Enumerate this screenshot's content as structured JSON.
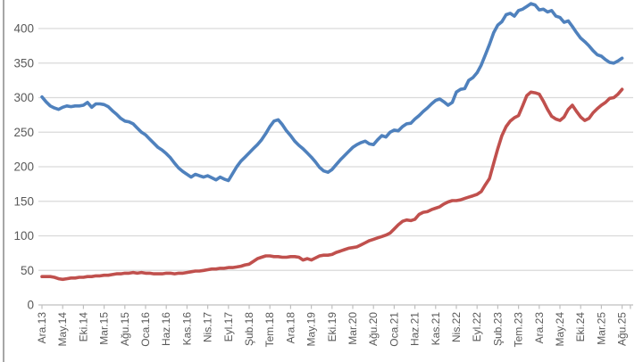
{
  "chart_data": {
    "type": "line",
    "title": "",
    "xlabel": "",
    "ylabel": "",
    "legend": "none",
    "grid": true,
    "x_is_monthly_categories": true,
    "x_first_category": "Ara.13",
    "x_last_category": "Ağu.25",
    "x_label_step_months": 5,
    "x_tick_labels": [
      "Ara.13",
      "May.14",
      "Eki.14",
      "Mar.15",
      "Ağu.15",
      "Oca.16",
      "Haz.16",
      "Kas.16",
      "Nis.17",
      "Eyl.17",
      "Şub.18",
      "Tem.18",
      "Ara.18",
      "May.19",
      "Eki.19",
      "Mar.20",
      "Ağu.20",
      "Oca.21",
      "Haz.21",
      "Kas.21",
      "Nis.22",
      "Eyl.22",
      "Şub.23",
      "Tem.23",
      "Ara.23",
      "May.24",
      "Eki.24",
      "Mar.25",
      "Ağu.25"
    ],
    "y_ticks": [
      0,
      50,
      100,
      150,
      200,
      250,
      300,
      350,
      400
    ],
    "ylim": [
      0,
      440
    ],
    "series": [
      {
        "name": "blue-series",
        "color": "#4F81BD",
        "values": [
          301,
          294,
          288,
          285,
          283,
          286,
          288,
          287,
          288,
          288,
          289,
          293,
          286,
          291,
          291,
          290,
          287,
          281,
          276,
          270,
          266,
          265,
          262,
          256,
          250,
          246,
          240,
          234,
          228,
          224,
          219,
          213,
          205,
          198,
          193,
          189,
          185,
          189,
          187,
          185,
          187,
          184,
          181,
          185,
          182,
          180,
          190,
          200,
          208,
          214,
          220,
          226,
          232,
          239,
          248,
          258,
          266,
          268,
          261,
          252,
          245,
          237,
          231,
          226,
          220,
          214,
          207,
          199,
          194,
          192,
          196,
          203,
          210,
          216,
          222,
          228,
          232,
          235,
          237,
          233,
          232,
          239,
          245,
          243,
          250,
          253,
          252,
          258,
          262,
          263,
          269,
          274,
          280,
          285,
          291,
          296,
          298,
          294,
          289,
          293,
          308,
          312,
          313,
          325,
          329,
          336,
          347,
          362,
          377,
          394,
          405,
          410,
          420,
          422,
          418,
          426,
          428,
          432,
          436,
          434,
          427,
          428,
          424,
          426,
          418,
          416,
          409,
          411,
          403,
          394,
          386,
          381,
          375,
          368,
          362,
          360,
          355,
          351,
          350,
          353,
          357
        ]
      },
      {
        "name": "red-series",
        "color": "#C0504D",
        "values": [
          41,
          41,
          41,
          40,
          38,
          37,
          38,
          39,
          39,
          40,
          40,
          41,
          41,
          42,
          42,
          43,
          43,
          44,
          45,
          45,
          46,
          46,
          47,
          46,
          47,
          46,
          46,
          45,
          45,
          45,
          46,
          46,
          45,
          46,
          46,
          47,
          48,
          49,
          49,
          50,
          51,
          52,
          52,
          53,
          53,
          54,
          54,
          55,
          56,
          58,
          59,
          63,
          67,
          69,
          71,
          71,
          70,
          70,
          69,
          69,
          70,
          70,
          69,
          65,
          67,
          65,
          68,
          71,
          72,
          72,
          73,
          76,
          78,
          80,
          82,
          83,
          84,
          87,
          90,
          93,
          95,
          97,
          99,
          101,
          104,
          110,
          116,
          121,
          123,
          122,
          124,
          131,
          134,
          135,
          138,
          140,
          142,
          146,
          149,
          151,
          151,
          152,
          154,
          156,
          158,
          160,
          164,
          174,
          183,
          205,
          226,
          245,
          258,
          266,
          271,
          274,
          288,
          303,
          308,
          307,
          305,
          295,
          283,
          273,
          269,
          267,
          272,
          283,
          289,
          280,
          272,
          267,
          270,
          278,
          284,
          289,
          293,
          299,
          300,
          305,
          312
        ]
      }
    ],
    "colors": {
      "gridline": "#D9D9D9",
      "axis_line": "#BFBFBF",
      "tick_mark": "#BFBFBF",
      "tick_label": "#595959",
      "chart_left_border": "#808080",
      "background": "#FFFFFF"
    }
  }
}
